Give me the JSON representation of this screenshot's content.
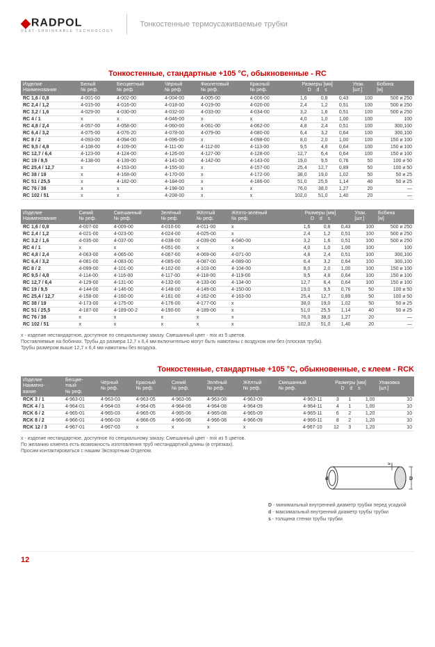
{
  "brand": "RADPOL",
  "tagline": "HEAT-SHRINKABLE TECHNOLOGY",
  "docTitle": "Тонкостенные термоусаживаемые трубки",
  "sec1_title": "Тонкостенные, стандартные +105 °C, обыкновенные - RC",
  "sec2_title": "Тонкостенные, стандартные +105 °C, обыкновенные, с клеем - RCK",
  "h_izdelie": "Изделие",
  "h_naimen": "Наименование",
  "h_ref": "№ реф.",
  "h_bely": "Белый",
  "h_bescv": "Бесцветный",
  "h_chern": "Чёрный",
  "h_fiolet": "Фиолетовый",
  "h_krasn": "Красный",
  "h_sin": "Синий",
  "h_smesh": "Смешанный",
  "h_zel": "Зелёный",
  "h_zhel": "Жёлтый",
  "h_zhelzel": "Жёлто-зелёный",
  "h_razm": "Размеры  [мм]",
  "h_D": "D",
  "h_d": "d",
  "h_s": "s",
  "h_upak": "Упак.",
  "h_sht": "[шт.]",
  "h_bobina": "Бобина",
  "h_m": "[м]",
  "h_upakovka": "Упаковка",
  "t1": {
    "rows": [
      [
        "RC 1,6 / 0,8",
        "4-001-00",
        "4-002-00",
        "4-004-00",
        "4-005-00",
        "4-006-00",
        "1,6",
        "0,8",
        "0,43",
        "100",
        "500 и 250"
      ],
      [
        "RC 2,4 / 1,2",
        "4-015-00",
        "4-016-00",
        "4-018-00",
        "4-019-00",
        "4-020-00",
        "2,4",
        "1,2",
        "0,51",
        "100",
        "500 и 250"
      ],
      [
        "RC 3,2 / 1,6",
        "4-029-00",
        "4-030-00",
        "4-032-00",
        "4-033-00",
        "4-034-00",
        "3,2",
        "1,6",
        "0,51",
        "100",
        "500 и 250"
      ],
      [
        "RC 4 / 1",
        "x",
        "x",
        "4-046-00",
        "x",
        "x",
        "4,0",
        "1,0",
        "1,00",
        "100",
        "100"
      ],
      [
        "RC 4,8 / 2,4",
        "4-057-00",
        "4-058-00",
        "4-060-00",
        "4-061-00",
        "4-062-00",
        "4,8",
        "2,4",
        "0,51",
        "100",
        "300,100"
      ],
      [
        "RC 6,4 / 3,2",
        "4-075-00",
        "4-076-20",
        "4-078-00",
        "4-079-00",
        "4-080-00",
        "6,4",
        "3,2",
        "0,64",
        "100",
        "300,100"
      ],
      [
        "RC 8 / 2",
        "4-093-00",
        "4-094-00",
        "4-096-00",
        "x",
        "4-098-00",
        "8,0",
        "2,0",
        "1,00",
        "100",
        "150 и 100"
      ],
      [
        "RC 9,5 / 4,8",
        "4-108-00",
        "4-109-00",
        "4-111-00",
        "4-112-00",
        "4-113-00",
        "9,5",
        "4,8",
        "0,64",
        "100",
        "150 и 100"
      ],
      [
        "RC 12,7 / 6,4",
        "4-123-00",
        "4-124-00",
        "4-126-00",
        "4-127-00",
        "4-128-00",
        "12,7",
        "6,4",
        "0,64",
        "100",
        "150 и 100"
      ],
      [
        "RC 19 / 9,5",
        "4-138-00",
        "4-139-00",
        "4-141-00",
        "4-142-00",
        "4-143-00",
        "19,0",
        "9,5",
        "0,76",
        "50",
        "100 и 50"
      ],
      [
        "RC 25,4 / 12,7",
        "x",
        "4-153-00",
        "4-155-00",
        "x",
        "4-157-00",
        "25,4",
        "12,7",
        "0,89",
        "50",
        "100 и 50"
      ],
      [
        "RC 38 / 19",
        "x",
        "4-168-00",
        "4-170-00",
        "x",
        "4-172-00",
        "38,0",
        "19,0",
        "1,02",
        "50",
        "50 и 25"
      ],
      [
        "RC 51 / 25,5",
        "x",
        "4-182-00",
        "4-184-00",
        "x",
        "4-186-00",
        "51,0",
        "25,5",
        "1,14",
        "40",
        "50 и 25"
      ],
      [
        "RC 76 / 38",
        "x",
        "x",
        "4-198-00",
        "x",
        "x",
        "76,0",
        "38,0",
        "1,27",
        "20",
        "—"
      ],
      [
        "RC 102 / 51",
        "x",
        "x",
        "4-208-00",
        "x",
        "x",
        "102,0",
        "51,0",
        "1,40",
        "20",
        "—"
      ]
    ]
  },
  "t2": {
    "rows": [
      [
        "RC 1,6 / 0,8",
        "4-007-00",
        "4-009-00",
        "4-010-00",
        "4-011-00",
        "x",
        "1,6",
        "0,8",
        "0,43",
        "100",
        "500 и 250"
      ],
      [
        "RC 2,4 / 1,2",
        "4-021-00",
        "4-023-00",
        "4-024-00",
        "4-025-00",
        "x",
        "2,4",
        "1,2",
        "0,51",
        "100",
        "500 и 250"
      ],
      [
        "RC 3,2 / 1,6",
        "4-035-00",
        "4-037-00",
        "4-038-00",
        "4-039-00",
        "4-040-00",
        "3,2",
        "1,6",
        "0,51",
        "100",
        "500 и 250"
      ],
      [
        "RC 4 / 1",
        "x",
        "x",
        "4-051-00",
        "x",
        "x",
        "4,0",
        "1,0",
        "1,00",
        "100",
        "100"
      ],
      [
        "RC 4,8 / 2,4",
        "4-063-00",
        "4-065-00",
        "4-067-00",
        "4-069-00",
        "4-071-00",
        "4,8",
        "2,4",
        "0,51",
        "100",
        "300,100"
      ],
      [
        "RC 6,4 / 3,2",
        "4-081-00",
        "4-083-00",
        "4-085-00",
        "4-087-00",
        "4-089-00",
        "6,4",
        "3,2",
        "0,64",
        "100",
        "300,100"
      ],
      [
        "RC 8 / 2",
        "4-099-00",
        "4-101-00",
        "4-102-00",
        "4-103-00",
        "4-104-00",
        "8,0",
        "2,0",
        "1,00",
        "100",
        "150 и 100"
      ],
      [
        "RC 9,5 / 4,8",
        "4-114-00",
        "4-116-00",
        "4-117-00",
        "4-118-00",
        "4-119-00",
        "9,5",
        "4,8",
        "0,64",
        "100",
        "150 и 100"
      ],
      [
        "RC 12,7 / 6,4",
        "4-129-00",
        "4-131-00",
        "4-132-00",
        "4-133-00",
        "4-134-00",
        "12,7",
        "6,4",
        "0,64",
        "100",
        "150 и 100"
      ],
      [
        "RC 19 / 9,5",
        "4-144-00",
        "4-146-00",
        "4-148-00",
        "4-149-00",
        "4-150-00",
        "19,0",
        "9,5",
        "0,76",
        "50",
        "100 и 50"
      ],
      [
        "RC 25,4 / 12,7",
        "4-158-00",
        "4-160-00",
        "4-161-00",
        "4-162-00",
        "4-163-00",
        "25,4",
        "12,7",
        "0,89",
        "50",
        "100 и 50"
      ],
      [
        "RC 38 / 19",
        "4-173-00",
        "4-175-00",
        "4-176-00",
        "4-177-00",
        "x",
        "38,0",
        "19,0",
        "1,02",
        "50",
        "50 и 25"
      ],
      [
        "RC 51 / 25,5",
        "4-187-00",
        "4-189-00-2",
        "4-190-00",
        "4-189-00",
        "x",
        "51,0",
        "25,5",
        "1,14",
        "40",
        "50 и 25"
      ],
      [
        "RC 76 / 38",
        "x",
        "x",
        "x",
        "x",
        "x",
        "76,0",
        "38,0",
        "1,27",
        "20",
        "—"
      ],
      [
        "RC 102 / 51",
        "x",
        "x",
        "x",
        "x",
        "x",
        "102,0",
        "51,0",
        "1,40",
        "20",
        "—"
      ]
    ]
  },
  "note1_l1": "х - изделие нестандартное, доступное по специальному заказу. Смешанный цвет - mix из 5 цветов.",
  "note1_l2": "Поставляемые на бобинах. Трубы до размера 12,7 х 6,4 мм включительно могут быть намотаны с воздухом или без (плоская труба).",
  "note1_l3": "Трубы размером выше 12,7 х 6,4 мм намотаны без воздуха.",
  "t3": {
    "rows": [
      [
        "RCK 3 / 1",
        "4-963-01",
        "4-963-03",
        "4-963-05",
        "4-963-06",
        "4-963-08",
        "4-963-09",
        "4-963-11",
        "3",
        "1",
        "1,00",
        "10"
      ],
      [
        "RCK 4 / 1",
        "4-964-01",
        "4-964-03",
        "4-964-05",
        "4-964-06",
        "4-964-08",
        "4-964-09",
        "4-964-11",
        "4",
        "1",
        "1,00",
        "10"
      ],
      [
        "RCK 6 / 2",
        "4-965-01",
        "4-965-03",
        "4-965-05",
        "4-965-06",
        "4-965-08",
        "4-965-09",
        "4-965-11",
        "6",
        "2",
        "1,20",
        "10"
      ],
      [
        "RCK 8 / 2",
        "4-966-01",
        "4-966-03",
        "4-966-05",
        "4-966-06",
        "4-966-08",
        "4-966-09",
        "4-966-11",
        "8",
        "2",
        "1,20",
        "10"
      ],
      [
        "RCK 12 / 3",
        "4-967-01",
        "4-967-03",
        "x",
        "x",
        "x",
        "x",
        "4-967-10",
        "12",
        "3",
        "1,20",
        "10"
      ]
    ]
  },
  "note2_l1": "х - изделие нестандартное, доступное по специальному заказу. Смешанный цвет - mix из 5 цветов.",
  "note2_l2": "По желанию клиента есть возможность изготовления труб нестандартной длины (в отрезках).",
  "note2_l3": "Просим контактироваться с нашим Экспортным Отделом.",
  "legend_D_b": "D",
  "legend_D": " - минимальный внутренний диаметр трубки перед усадкой",
  "legend_d_b": "d",
  "legend_d": " - максимальный внутренний диаметр трубы трубки",
  "legend_s_b": "s",
  "legend_s": " - толщина стенки трубы трубки",
  "pagenum": "12"
}
